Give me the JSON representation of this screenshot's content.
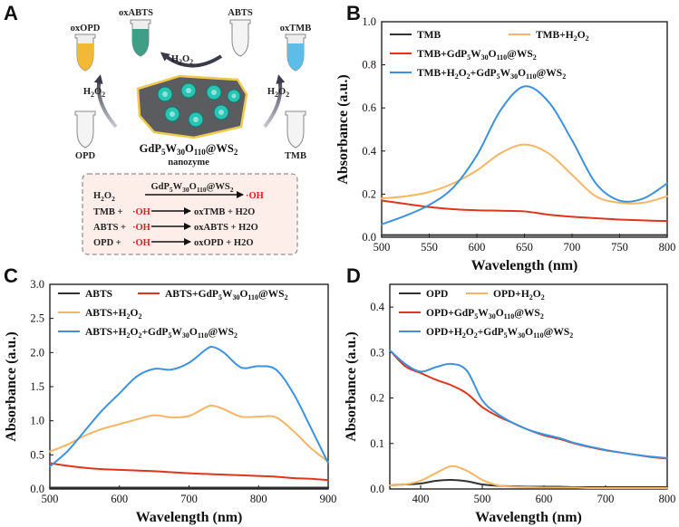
{
  "panels": {
    "A": {
      "letter": "A",
      "tubes": {
        "oxopd": "oxOPD",
        "oxabts": "oxABTS",
        "abts": "ABTS",
        "oxtmb": "oxTMB",
        "opd": "OPD",
        "tmb": "TMB"
      },
      "arrow_labels": {
        "top": "H2O2",
        "left": "H2O2",
        "right": "H2O2"
      },
      "nanozyme_formula": "GdP5W30O110@WS2",
      "nanozyme_word": "nanozyme",
      "reactions": [
        {
          "left": "H2O2",
          "over": "GdP5W30O110@WS2",
          "product": "·OH"
        },
        {
          "left": "TMB + ",
          "radical": "·OH",
          "product": "oxTMB + H2O"
        },
        {
          "left": "ABTS + ",
          "radical": "·OH",
          "product": "oxABTS + H2O"
        },
        {
          "left": "OPD + ",
          "radical": "·OH",
          "product": "oxOPD + H2O"
        }
      ]
    },
    "B": {
      "letter": "B"
    },
    "C": {
      "letter": "C"
    },
    "D": {
      "letter": "D"
    }
  },
  "colors": {
    "black": "#333333",
    "orange": "#F4B665",
    "red": "#E0341C",
    "blue": "#3C92DC",
    "radical": "#E02020"
  },
  "chart_data": [
    {
      "panel": "B",
      "type": "line",
      "xlabel": "Wavelength (nm)",
      "ylabel": "Absorbance (a.u.)",
      "xlim": [
        500,
        800
      ],
      "ylim": [
        0,
        1.0
      ],
      "xticks": [
        500,
        550,
        600,
        650,
        700,
        750,
        800
      ],
      "yticks": [
        0.0,
        0.2,
        0.4,
        0.6,
        0.8,
        1.0
      ],
      "x": [
        500,
        525,
        550,
        575,
        600,
        625,
        650,
        675,
        700,
        725,
        750,
        775,
        800
      ],
      "series": [
        {
          "name": "TMB",
          "color": "black",
          "values": [
            0.01,
            0.01,
            0.01,
            0.01,
            0.01,
            0.01,
            0.01,
            0.01,
            0.01,
            0.01,
            0.01,
            0.01,
            0.01
          ]
        },
        {
          "name": "TMB+H2O2",
          "color": "orange",
          "values": [
            0.18,
            0.19,
            0.21,
            0.25,
            0.31,
            0.39,
            0.43,
            0.39,
            0.29,
            0.19,
            0.16,
            0.16,
            0.19
          ]
        },
        {
          "name": "TMB+GdP5W30O110@WS2",
          "color": "red",
          "values": [
            0.17,
            0.155,
            0.14,
            0.13,
            0.125,
            0.123,
            0.12,
            0.105,
            0.095,
            0.088,
            0.082,
            0.078,
            0.075
          ]
        },
        {
          "name": "TMB+H2O2+GdP5W30O110@WS2",
          "color": "blue",
          "values": [
            0.06,
            0.1,
            0.15,
            0.23,
            0.38,
            0.59,
            0.7,
            0.63,
            0.45,
            0.25,
            0.17,
            0.18,
            0.25
          ]
        }
      ]
    },
    {
      "panel": "C",
      "type": "line",
      "xlabel": "Wavelength (nm)",
      "ylabel": "Absorbance (a.u.)",
      "xlim": [
        500,
        900
      ],
      "ylim": [
        0,
        3.0
      ],
      "xticks": [
        500,
        600,
        700,
        800,
        900
      ],
      "yticks": [
        0.0,
        0.5,
        1.0,
        1.5,
        2.0,
        2.5,
        3.0
      ],
      "x": [
        500,
        525,
        550,
        575,
        600,
        625,
        650,
        675,
        700,
        725,
        735,
        750,
        775,
        800,
        825,
        850,
        875,
        900
      ],
      "series": [
        {
          "name": "ABTS",
          "color": "black",
          "values": [
            0.02,
            0.02,
            0.02,
            0.02,
            0.02,
            0.02,
            0.02,
            0.02,
            0.02,
            0.02,
            0.02,
            0.02,
            0.02,
            0.02,
            0.02,
            0.02,
            0.02,
            0.02
          ]
        },
        {
          "name": "ABTS+GdP5W30O110@WS2",
          "color": "red",
          "values": [
            0.38,
            0.34,
            0.31,
            0.29,
            0.28,
            0.27,
            0.26,
            0.245,
            0.23,
            0.22,
            0.215,
            0.21,
            0.2,
            0.19,
            0.18,
            0.16,
            0.15,
            0.13
          ]
        },
        {
          "name": "ABTS+H2O2",
          "color": "orange",
          "values": [
            0.55,
            0.65,
            0.78,
            0.88,
            0.95,
            1.02,
            1.08,
            1.05,
            1.07,
            1.2,
            1.22,
            1.17,
            1.06,
            1.06,
            1.05,
            0.85,
            0.6,
            0.4
          ]
        },
        {
          "name": "ABTS+H2O2+GdP5W30O110@WS2",
          "color": "blue",
          "values": [
            0.33,
            0.55,
            0.85,
            1.15,
            1.4,
            1.65,
            1.76,
            1.75,
            1.85,
            2.05,
            2.08,
            2.0,
            1.78,
            1.8,
            1.75,
            1.4,
            0.9,
            0.38
          ]
        }
      ]
    },
    {
      "panel": "D",
      "type": "line",
      "xlabel": "Wavelength (nm)",
      "ylabel": "Absorbance (a.u.)",
      "xlim": [
        350,
        800
      ],
      "ylim": [
        0,
        0.45
      ],
      "xticks": [
        400,
        500,
        600,
        700,
        800
      ],
      "yticks": [
        0.0,
        0.1,
        0.2,
        0.3,
        0.4
      ],
      "x": [
        350,
        375,
        400,
        425,
        450,
        475,
        500,
        525,
        550,
        575,
        600,
        625,
        650,
        675,
        700,
        725,
        750,
        775,
        800
      ],
      "series": [
        {
          "name": "OPD",
          "color": "black",
          "values": [
            0.008,
            0.01,
            0.012,
            0.018,
            0.02,
            0.017,
            0.01,
            0.007,
            0.006,
            0.005,
            0.005,
            0.005,
            0.004,
            0.004,
            0.004,
            0.004,
            0.004,
            0.004,
            0.004
          ]
        },
        {
          "name": "OPD+H2O2",
          "color": "orange",
          "values": [
            0.008,
            0.01,
            0.018,
            0.035,
            0.05,
            0.04,
            0.02,
            0.008,
            0.005,
            0.004,
            0.003,
            0.003,
            0.003,
            0.002,
            0.002,
            0.002,
            0.002,
            0.002,
            0.002
          ]
        },
        {
          "name": "OPD+GdP5W30O110@WS2",
          "color": "red",
          "values": [
            0.305,
            0.27,
            0.255,
            0.24,
            0.228,
            0.21,
            0.18,
            0.16,
            0.145,
            0.13,
            0.118,
            0.11,
            0.1,
            0.092,
            0.085,
            0.08,
            0.075,
            0.07,
            0.067
          ]
        },
        {
          "name": "OPD+H2O2+GdP5W30O110@WS2",
          "color": "blue",
          "values": [
            0.305,
            0.275,
            0.258,
            0.268,
            0.275,
            0.26,
            0.195,
            0.165,
            0.145,
            0.13,
            0.12,
            0.112,
            0.101,
            0.093,
            0.086,
            0.08,
            0.075,
            0.071,
            0.068
          ]
        }
      ]
    }
  ]
}
